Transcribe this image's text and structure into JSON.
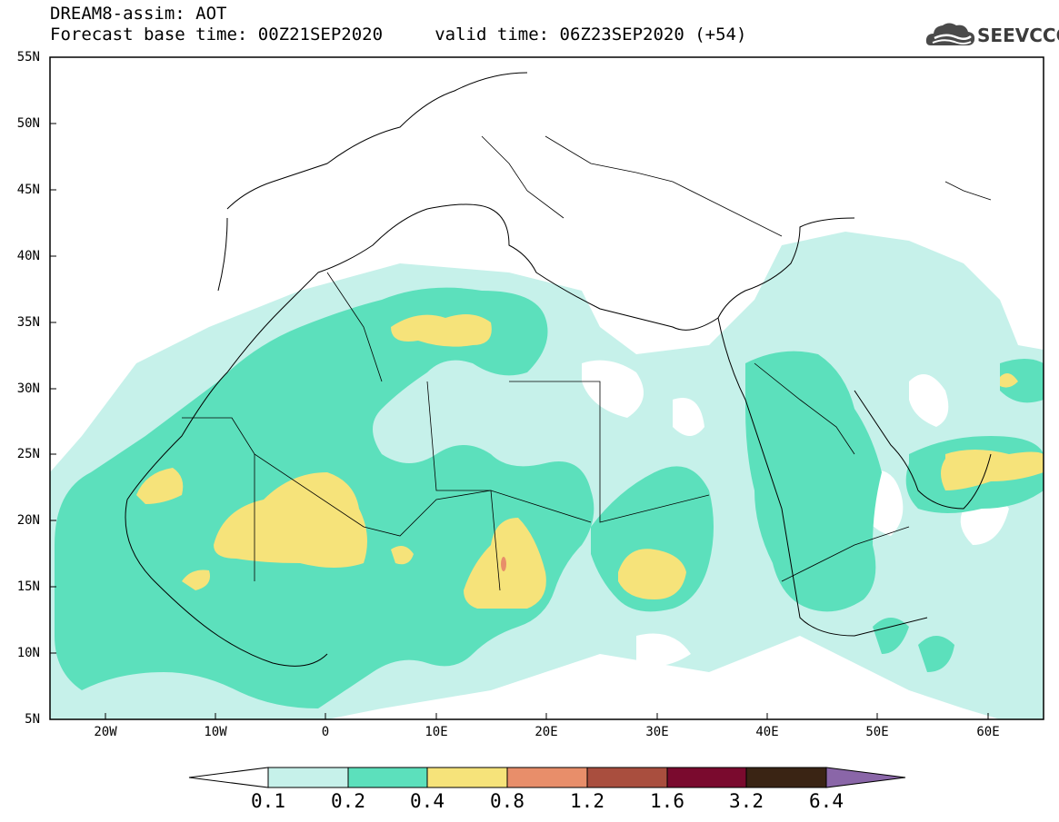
{
  "header": {
    "line1": "DREAM8-assim: AOT",
    "line2": "Forecast base time: 00Z21SEP2020     valid time: 06Z23SEP2020 (+54)"
  },
  "logo": {
    "text": "SEEVCCC",
    "icon": "cloud-icon"
  },
  "map": {
    "lon_range": [
      -25,
      65
    ],
    "lat_range": [
      5,
      55
    ],
    "y_labels": [
      "55N",
      "50N",
      "45N",
      "40N",
      "35N",
      "30N",
      "25N",
      "20N",
      "15N",
      "10N",
      "5N"
    ],
    "x_labels": [
      "20W",
      "10W",
      "0",
      "10E",
      "20E",
      "30E",
      "40E",
      "50E",
      "60E"
    ],
    "variable": "AOT"
  },
  "colorbar": {
    "labels": [
      "0.1",
      "0.2",
      "0.4",
      "0.8",
      "1.2",
      "1.6",
      "3.2",
      "6.4"
    ],
    "colors": [
      "#ffffff",
      "#c6f1ea",
      "#5ce0bc",
      "#f6e37a",
      "#e88e6a",
      "#a94e3e",
      "#7a0a2e",
      "#3a2414",
      "#8a66a8"
    ]
  }
}
